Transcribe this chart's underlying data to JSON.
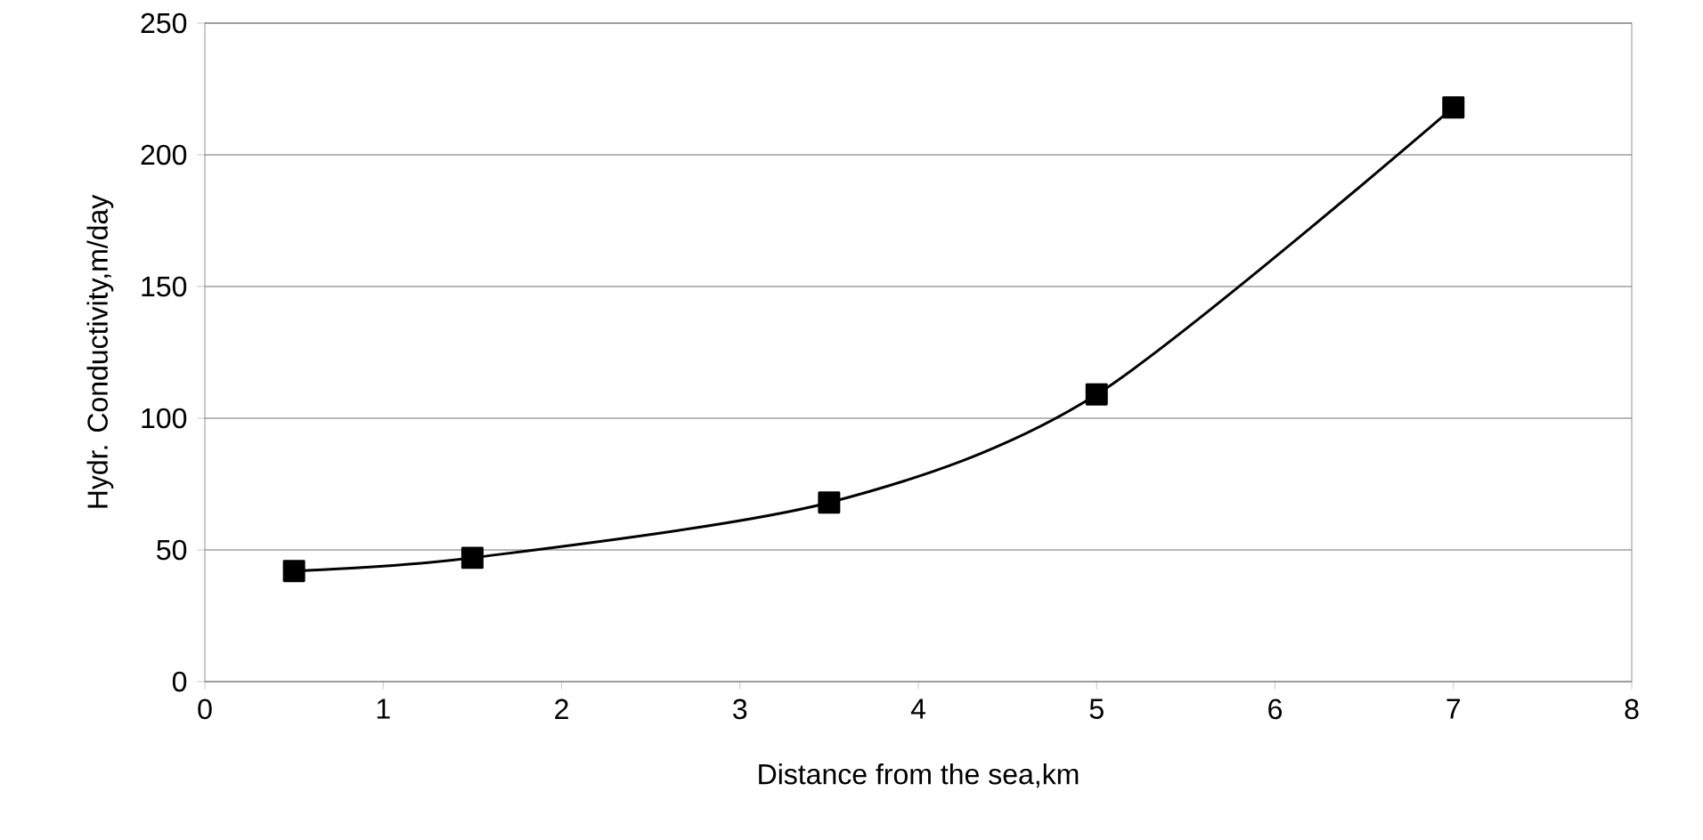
{
  "chart_data": {
    "type": "line",
    "xlabel": "Distance from the sea,km",
    "ylabel": "Hydr. Conductivity,m/day",
    "x": [
      0.5,
      1.5,
      3.5,
      5,
      7
    ],
    "series": [
      {
        "color": "#000000",
        "values": [
          42,
          47,
          68,
          109,
          218
        ]
      }
    ],
    "xlim": [
      0,
      8
    ],
    "xticks": [
      0,
      1,
      2,
      3,
      4,
      5,
      6,
      7,
      8
    ],
    "ylim": [
      0,
      250
    ],
    "yticks": [
      0,
      50,
      100,
      150,
      200,
      250
    ],
    "grid": "y",
    "marker": "square",
    "line_style": "solid"
  }
}
